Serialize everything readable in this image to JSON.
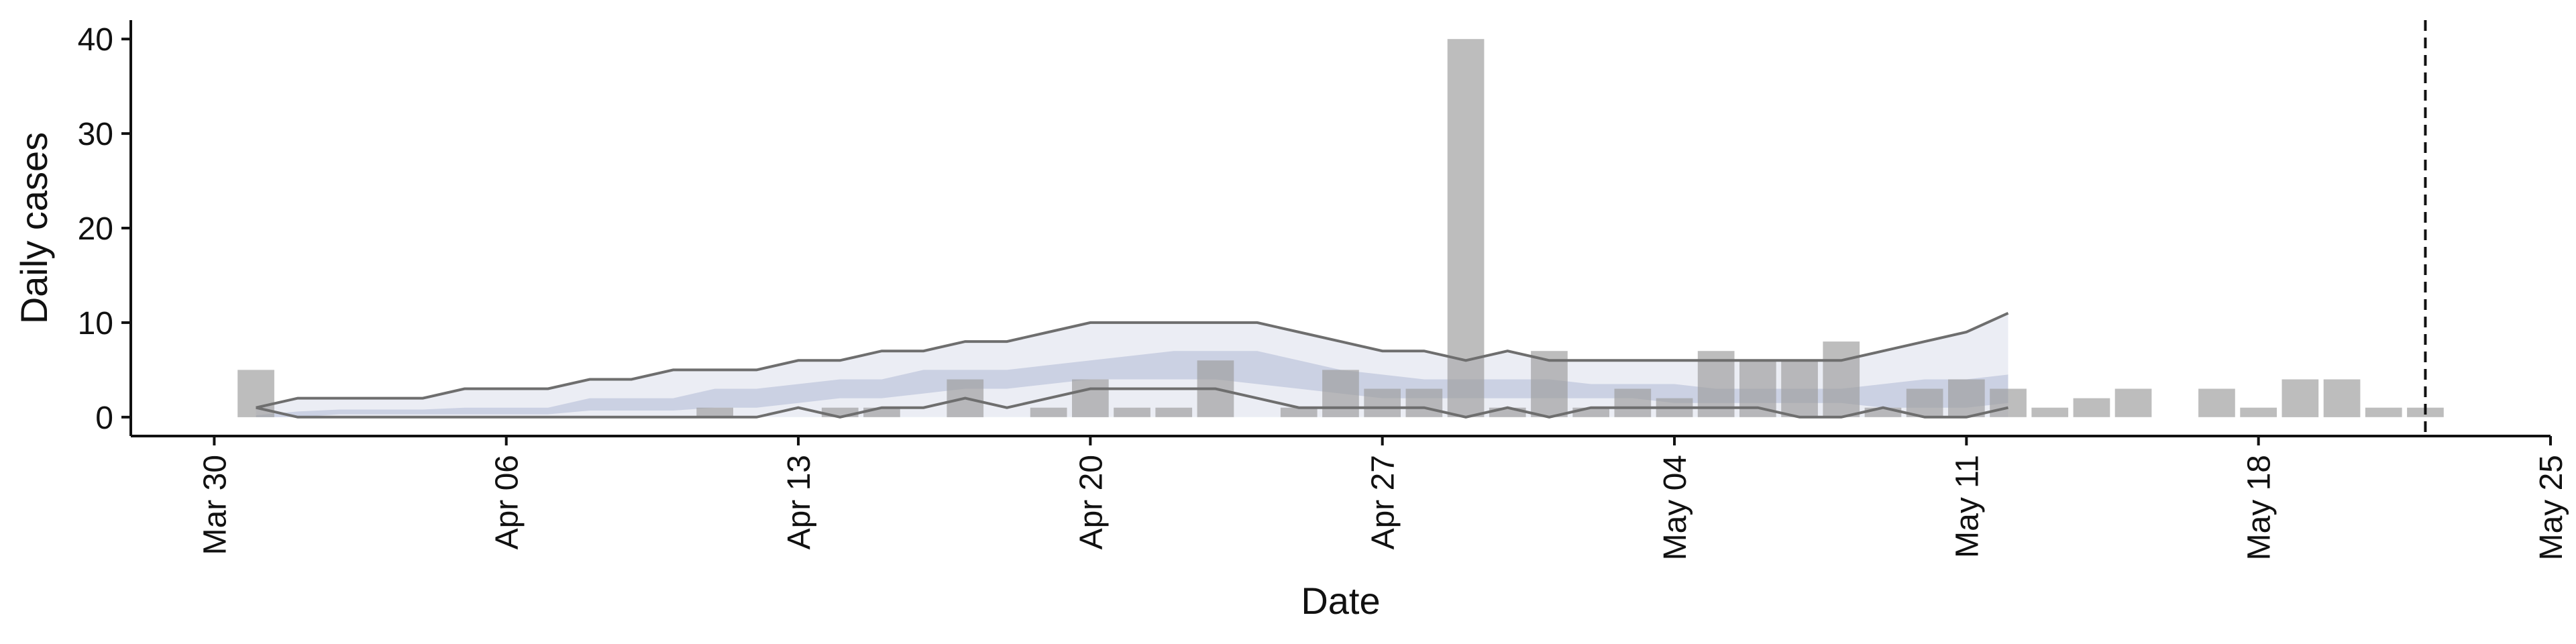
{
  "chart_data": {
    "type": "bar",
    "xlabel": "Date",
    "ylabel": "Daily cases",
    "ylim": [
      -2,
      42
    ],
    "y_ticks": [
      0,
      10,
      20,
      30,
      40
    ],
    "x_range": [
      "2020-03-28",
      "2020-05-25"
    ],
    "x_ticks": [
      {
        "date": "2020-03-30",
        "label": "Mar 30"
      },
      {
        "date": "2020-04-06",
        "label": "Apr 06"
      },
      {
        "date": "2020-04-13",
        "label": "Apr 13"
      },
      {
        "date": "2020-04-20",
        "label": "Apr 20"
      },
      {
        "date": "2020-04-27",
        "label": "Apr 27"
      },
      {
        "date": "2020-05-04",
        "label": "May 04"
      },
      {
        "date": "2020-05-11",
        "label": "May 11"
      },
      {
        "date": "2020-05-18",
        "label": "May 18"
      },
      {
        "date": "2020-05-25",
        "label": "May 25"
      }
    ],
    "grid": false,
    "reference_line_date": "2020-05-22",
    "colors": {
      "bars": "#bdbdbd",
      "band_outer": "#e9ebf3",
      "band_inner": "#c5cbdf",
      "bound_lines": "#6e6e6e",
      "axis": "#111111",
      "reference_line": "#111111"
    },
    "bars": {
      "dates": [
        "2020-03-31",
        "2020-04-01",
        "2020-04-02",
        "2020-04-03",
        "2020-04-04",
        "2020-04-05",
        "2020-04-06",
        "2020-04-07",
        "2020-04-08",
        "2020-04-09",
        "2020-04-10",
        "2020-04-11",
        "2020-04-12",
        "2020-04-13",
        "2020-04-14",
        "2020-04-15",
        "2020-04-16",
        "2020-04-17",
        "2020-04-18",
        "2020-04-19",
        "2020-04-20",
        "2020-04-21",
        "2020-04-22",
        "2020-04-23",
        "2020-04-24",
        "2020-04-25",
        "2020-04-26",
        "2020-04-27",
        "2020-04-28",
        "2020-04-29",
        "2020-04-30",
        "2020-05-01",
        "2020-05-02",
        "2020-05-03",
        "2020-05-04",
        "2020-05-05",
        "2020-05-06",
        "2020-05-07",
        "2020-05-08",
        "2020-05-09",
        "2020-05-10",
        "2020-05-11",
        "2020-05-12",
        "2020-05-13",
        "2020-05-14",
        "2020-05-15",
        "2020-05-16",
        "2020-05-17",
        "2020-05-18",
        "2020-05-19",
        "2020-05-20",
        "2020-05-21",
        "2020-05-22"
      ],
      "values": [
        5,
        0,
        0,
        0,
        0,
        0,
        0,
        0,
        0,
        0,
        0,
        1,
        0,
        0,
        1,
        1,
        0,
        4,
        0,
        1,
        4,
        1,
        1,
        6,
        0,
        1,
        5,
        3,
        3,
        40,
        1,
        7,
        1,
        3,
        2,
        7,
        6,
        6,
        8,
        1,
        3,
        4,
        3,
        1,
        2,
        3,
        0,
        3,
        1,
        4,
        4,
        1,
        1
      ]
    },
    "bands": {
      "dates": [
        "2020-03-31",
        "2020-04-01",
        "2020-04-02",
        "2020-04-03",
        "2020-04-04",
        "2020-04-05",
        "2020-04-06",
        "2020-04-07",
        "2020-04-08",
        "2020-04-09",
        "2020-04-10",
        "2020-04-11",
        "2020-04-12",
        "2020-04-13",
        "2020-04-14",
        "2020-04-15",
        "2020-04-16",
        "2020-04-17",
        "2020-04-18",
        "2020-04-19",
        "2020-04-20",
        "2020-04-21",
        "2020-04-22",
        "2020-04-23",
        "2020-04-24",
        "2020-04-25",
        "2020-04-26",
        "2020-04-27",
        "2020-04-28",
        "2020-04-29",
        "2020-04-30",
        "2020-05-01",
        "2020-05-02",
        "2020-05-03",
        "2020-05-04",
        "2020-05-05",
        "2020-05-06",
        "2020-05-07",
        "2020-05-08",
        "2020-05-09",
        "2020-05-10",
        "2020-05-11",
        "2020-05-12"
      ],
      "outer_low": [
        0,
        0,
        0,
        0,
        0,
        0,
        0,
        0,
        0,
        0,
        0,
        0,
        0,
        0,
        0,
        0,
        0,
        0,
        0,
        0,
        0,
        0,
        0,
        0,
        0,
        0,
        0,
        0,
        0,
        0,
        0,
        0,
        0,
        0,
        0,
        0,
        0,
        0,
        0,
        0,
        0,
        0,
        0
      ],
      "outer_high": [
        1,
        2,
        2,
        2,
        2,
        3,
        3,
        3,
        4,
        4,
        5,
        5,
        5,
        6,
        6,
        7,
        7,
        8,
        8,
        9,
        10,
        10,
        10,
        10,
        10,
        9,
        8,
        7,
        7,
        6,
        7,
        6,
        6,
        6,
        6,
        6,
        6,
        6,
        6,
        7,
        8,
        9,
        11
      ],
      "inner_low": [
        0,
        0,
        0.3,
        0.3,
        0.3,
        0.3,
        0.3,
        0.3,
        0.7,
        0.7,
        0.7,
        1,
        1,
        1.5,
        2,
        2,
        2.5,
        3,
        3,
        3.5,
        4,
        4,
        4,
        4,
        3.5,
        3,
        2.5,
        2,
        2,
        2,
        2,
        2,
        2,
        2,
        1.5,
        1.5,
        1.5,
        1.5,
        1.5,
        1,
        1,
        1,
        1.5
      ],
      "inner_high": [
        0.2,
        0.6,
        0.8,
        0.8,
        0.8,
        1,
        1,
        1,
        2,
        2,
        2,
        3,
        3,
        3.5,
        4,
        4,
        5,
        5,
        5,
        5.5,
        6,
        6.5,
        7,
        7,
        7,
        6,
        5,
        4.5,
        4,
        4,
        4,
        4,
        3.5,
        3.5,
        3.5,
        3,
        3,
        3,
        3,
        3.5,
        4,
        4,
        4.5
      ],
      "lower_line": [
        1,
        0,
        0,
        0,
        0,
        0,
        0,
        0,
        0,
        0,
        0,
        0,
        0,
        1,
        0,
        1,
        1,
        2,
        1,
        2,
        3,
        3,
        3,
        3,
        2,
        1,
        1,
        1,
        1,
        0,
        1,
        0,
        1,
        1,
        1,
        1,
        1,
        0,
        0,
        1,
        0,
        0,
        1
      ]
    }
  }
}
